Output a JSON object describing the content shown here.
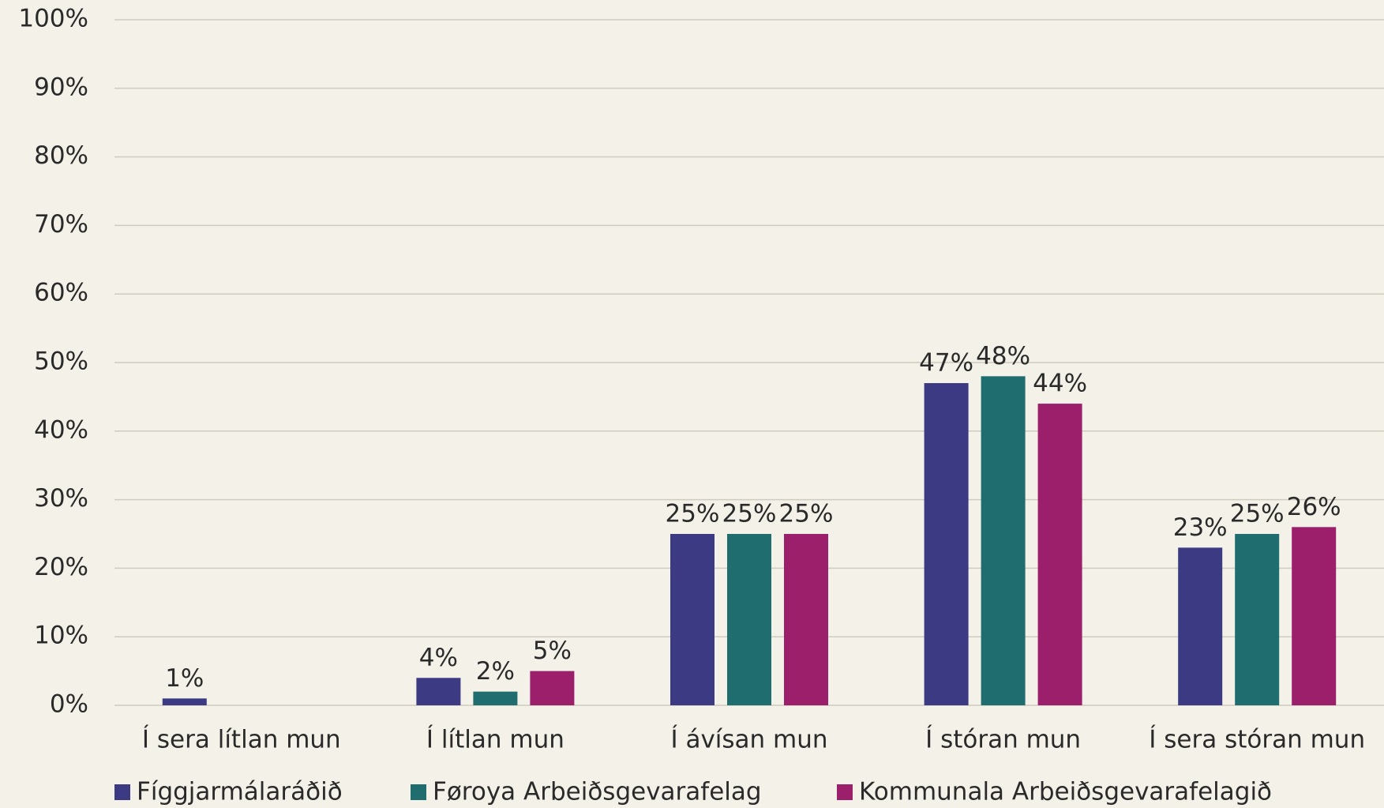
{
  "chart_data": {
    "type": "bar",
    "categories": [
      "Í sera lítlan mun",
      "Í lítlan mun",
      "Í ávísan mun",
      "Í stóran mun",
      "Í sera stóran mun"
    ],
    "series": [
      {
        "name": "Fíggjarmálaráðið",
        "color": "#3b3a82",
        "values": [
          1,
          4,
          25,
          47,
          23
        ],
        "value_labels": [
          "1%",
          "4%",
          "25%",
          "47%",
          "23%"
        ]
      },
      {
        "name": "Føroya Arbeiðsgevarafelag",
        "color": "#1f6d6f",
        "values": [
          null,
          2,
          25,
          48,
          25
        ],
        "value_labels": [
          null,
          "2%",
          "25%",
          "48%",
          "25%"
        ]
      },
      {
        "name": "Kommunala Arbeiðsgevarafelagið",
        "color": "#9c1f6c",
        "values": [
          null,
          5,
          25,
          44,
          26
        ],
        "value_labels": [
          null,
          "5%",
          "25%",
          "44%",
          "26%"
        ]
      }
    ],
    "ylim": [
      0,
      100
    ],
    "yticks": [
      {
        "value": 0,
        "label": "0%"
      },
      {
        "value": 10,
        "label": "10%"
      },
      {
        "value": 20,
        "label": "20%"
      },
      {
        "value": 30,
        "label": "30%"
      },
      {
        "value": 40,
        "label": "40%"
      },
      {
        "value": 50,
        "label": "50%"
      },
      {
        "value": 60,
        "label": "60%"
      },
      {
        "value": 70,
        "label": "70%"
      },
      {
        "value": 80,
        "label": "80%"
      },
      {
        "value": 90,
        "label": "90%"
      },
      {
        "value": 100,
        "label": "100%"
      }
    ],
    "grid": true,
    "legend": "bottom"
  }
}
